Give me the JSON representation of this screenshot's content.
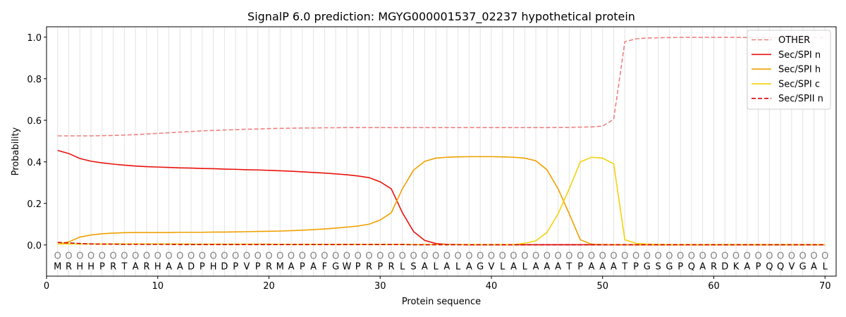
{
  "chart_data": {
    "type": "line",
    "title": "SignalP 6.0 prediction: MGYG000001537_02237 hypothetical protein",
    "xlabel": "Protein sequence",
    "ylabel": "Probability",
    "xlim": [
      0,
      71
    ],
    "ylim": [
      -0.15,
      1.05
    ],
    "xticks": [
      0,
      10,
      20,
      30,
      40,
      50,
      60,
      70
    ],
    "yticks": [
      0.0,
      0.2,
      0.4,
      0.6,
      0.8,
      1.0
    ],
    "xtick_labels": [
      "0",
      "10",
      "20",
      "30",
      "40",
      "50",
      "60",
      "70"
    ],
    "ytick_labels": [
      "0.0",
      "0.2",
      "0.4",
      "0.6",
      "0.8",
      "1.0"
    ],
    "sequence": [
      "M",
      "R",
      "H",
      "H",
      "P",
      "R",
      "T",
      "A",
      "R",
      "H",
      "A",
      "A",
      "D",
      "P",
      "H",
      "D",
      "P",
      "V",
      "P",
      "R",
      "M",
      "A",
      "P",
      "A",
      "F",
      "G",
      "W",
      "P",
      "R",
      "P",
      "R",
      "L",
      "S",
      "A",
      "L",
      "A",
      "L",
      "A",
      "G",
      "V",
      "L",
      "A",
      "L",
      "A",
      "A",
      "A",
      "T",
      "P",
      "A",
      "A",
      "A",
      "T",
      "P",
      "G",
      "S",
      "G",
      "P",
      "Q",
      "A",
      "R",
      "D",
      "K",
      "A",
      "P",
      "Q",
      "Q",
      "V",
      "G",
      "A",
      "L"
    ],
    "region_marker": "O",
    "legend_position": "upper right",
    "grid": "vertical lines at each residue",
    "series": [
      {
        "name": "OTHER",
        "color": "#f08080",
        "dash": "dashed",
        "values": [
          0.525,
          0.525,
          0.525,
          0.525,
          0.526,
          0.527,
          0.529,
          0.531,
          0.534,
          0.537,
          0.54,
          0.543,
          0.546,
          0.549,
          0.551,
          0.553,
          0.555,
          0.557,
          0.558,
          0.56,
          0.561,
          0.562,
          0.563,
          0.563,
          0.564,
          0.564,
          0.565,
          0.565,
          0.565,
          0.565,
          0.565,
          0.565,
          0.565,
          0.565,
          0.565,
          0.565,
          0.565,
          0.565,
          0.565,
          0.565,
          0.565,
          0.565,
          0.565,
          0.565,
          0.565,
          0.566,
          0.566,
          0.567,
          0.568,
          0.572,
          0.605,
          0.978,
          0.992,
          0.996,
          0.997,
          0.998,
          0.999,
          0.999,
          0.999,
          0.999,
          0.999,
          0.999,
          0.998,
          0.998,
          0.998,
          0.998,
          0.998,
          0.998,
          0.998,
          0.998
        ]
      },
      {
        "name": "Sec/SPI n",
        "color": "#e8120c",
        "dash": "solid",
        "values": [
          0.455,
          0.44,
          0.416,
          0.403,
          0.395,
          0.389,
          0.384,
          0.38,
          0.377,
          0.375,
          0.373,
          0.371,
          0.37,
          0.368,
          0.367,
          0.365,
          0.364,
          0.362,
          0.361,
          0.359,
          0.357,
          0.355,
          0.352,
          0.349,
          0.346,
          0.342,
          0.338,
          0.332,
          0.324,
          0.304,
          0.27,
          0.155,
          0.065,
          0.022,
          0.007,
          0.003,
          0.002,
          0.001,
          0.001,
          0.001,
          0.001,
          0.001,
          0.001,
          0.001,
          0.001,
          0.001,
          0.001,
          0.001,
          0.001,
          0.001,
          0.001,
          0.001,
          0.001,
          0.001,
          0.001,
          0.001,
          0.001,
          0.001,
          0.001,
          0.001,
          0.001,
          0.001,
          0.001,
          0.001,
          0.001,
          0.001,
          0.001,
          0.001,
          0.001,
          0.001
        ]
      },
      {
        "name": "Sec/SPI h",
        "color": "#f0a000",
        "dash": "solid",
        "values": [
          0.003,
          0.015,
          0.038,
          0.048,
          0.054,
          0.057,
          0.059,
          0.06,
          0.06,
          0.06,
          0.06,
          0.061,
          0.061,
          0.061,
          0.062,
          0.062,
          0.063,
          0.064,
          0.065,
          0.066,
          0.067,
          0.069,
          0.071,
          0.074,
          0.077,
          0.081,
          0.086,
          0.091,
          0.1,
          0.12,
          0.155,
          0.27,
          0.36,
          0.402,
          0.418,
          0.422,
          0.424,
          0.425,
          0.425,
          0.425,
          0.424,
          0.422,
          0.418,
          0.405,
          0.362,
          0.27,
          0.15,
          0.025,
          0.004,
          0.002,
          0.001,
          0.001,
          0.001,
          0.001,
          0.001,
          0.001,
          0.001,
          0.001,
          0.001,
          0.001,
          0.001,
          0.001,
          0.001,
          0.001,
          0.001,
          0.001,
          0.001,
          0.001,
          0.001,
          0.001
        ]
      },
      {
        "name": "Sec/SPI c",
        "color": "#f5d20a",
        "dash": "solid",
        "values": [
          0.005,
          0.005,
          0.005,
          0.005,
          0.005,
          0.005,
          0.005,
          0.005,
          0.005,
          0.005,
          0.005,
          0.005,
          0.004,
          0.004,
          0.004,
          0.004,
          0.004,
          0.004,
          0.004,
          0.004,
          0.003,
          0.003,
          0.003,
          0.003,
          0.003,
          0.003,
          0.003,
          0.003,
          0.003,
          0.003,
          0.003,
          0.003,
          0.002,
          0.002,
          0.002,
          0.002,
          0.002,
          0.002,
          0.002,
          0.002,
          0.002,
          0.002,
          0.008,
          0.02,
          0.06,
          0.15,
          0.27,
          0.4,
          0.422,
          0.418,
          0.39,
          0.025,
          0.008,
          0.004,
          0.003,
          0.002,
          0.002,
          0.002,
          0.002,
          0.002,
          0.002,
          0.002,
          0.002,
          0.002,
          0.002,
          0.002,
          0.002,
          0.002,
          0.002,
          0.002
        ]
      },
      {
        "name": "Sec/SPII n",
        "color": "#d40000",
        "dash": "dashed",
        "values": [
          0.012,
          0.01,
          0.007,
          0.005,
          0.004,
          0.004,
          0.003,
          0.003,
          0.003,
          0.003,
          0.003,
          0.002,
          0.002,
          0.002,
          0.002,
          0.002,
          0.002,
          0.002,
          0.002,
          0.002,
          0.002,
          0.002,
          0.002,
          0.002,
          0.002,
          0.002,
          0.002,
          0.002,
          0.002,
          0.002,
          0.002,
          0.002,
          0.001,
          0.001,
          0.001,
          0.001,
          0.001,
          0.001,
          0.001,
          0.001,
          0.001,
          0.001,
          0.001,
          0.001,
          0.001,
          0.001,
          0.001,
          0.001,
          0.001,
          0.001,
          0.001,
          0.001,
          0.001,
          0.001,
          0.001,
          0.001,
          0.001,
          0.001,
          0.001,
          0.001,
          0.001,
          0.001,
          0.001,
          0.001,
          0.001,
          0.001,
          0.001,
          0.001,
          0.001,
          0.001
        ]
      }
    ]
  }
}
